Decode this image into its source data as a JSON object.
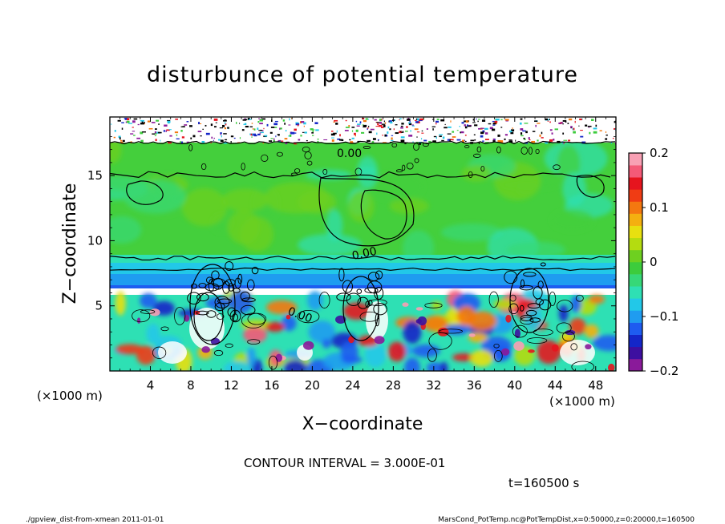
{
  "chart_data": {
    "type": "heatmap",
    "title": "disturbunce of potential temperature",
    "xlabel": "X−coordinate",
    "ylabel": "Z−coordinate",
    "x_unit_left": "(×1000 m)",
    "x_unit_right": "(×1000 m)",
    "xlim": [
      0,
      50
    ],
    "ylim": [
      0,
      19.5
    ],
    "x_ticks": [
      4,
      8,
      12,
      16,
      20,
      24,
      28,
      32,
      36,
      40,
      44,
      48
    ],
    "y_ticks": [
      5,
      10,
      15
    ],
    "colorbar": {
      "range": [
        -0.2,
        0.2
      ],
      "ticks": [
        {
          "value": 0.2,
          "label": "0.2"
        },
        {
          "value": 0.1,
          "label": "0.1"
        },
        {
          "value": 0,
          "label": "0"
        },
        {
          "value": -0.1,
          "label": "−0.1"
        },
        {
          "value": -0.2,
          "label": "−0.2"
        }
      ],
      "colors": [
        "#8a1a9a",
        "#3d0fa0",
        "#1426c8",
        "#1e5cf0",
        "#1f9cf0",
        "#22c8e8",
        "#2ee0b4",
        "#36d878",
        "#3ccc3c",
        "#6ed020",
        "#b4dc10",
        "#e8e010",
        "#f4b010",
        "#f47810",
        "#f03c14",
        "#e6141e",
        "#f45a78",
        "#f8a0b4"
      ]
    },
    "contour_labels": [
      "0.00",
      "0.00",
      "0.00"
    ],
    "contour_interval_text": "CONTOUR INTERVAL = 3.000E-01",
    "time_text": "t=160500 s",
    "footer_left": "./gpview_dist-from-xmean  2011-01-01",
    "footer_right": "MarsCond_PotTemp.nc@PotTempDist,x=0:50000,z=0:20000,t=160500"
  }
}
